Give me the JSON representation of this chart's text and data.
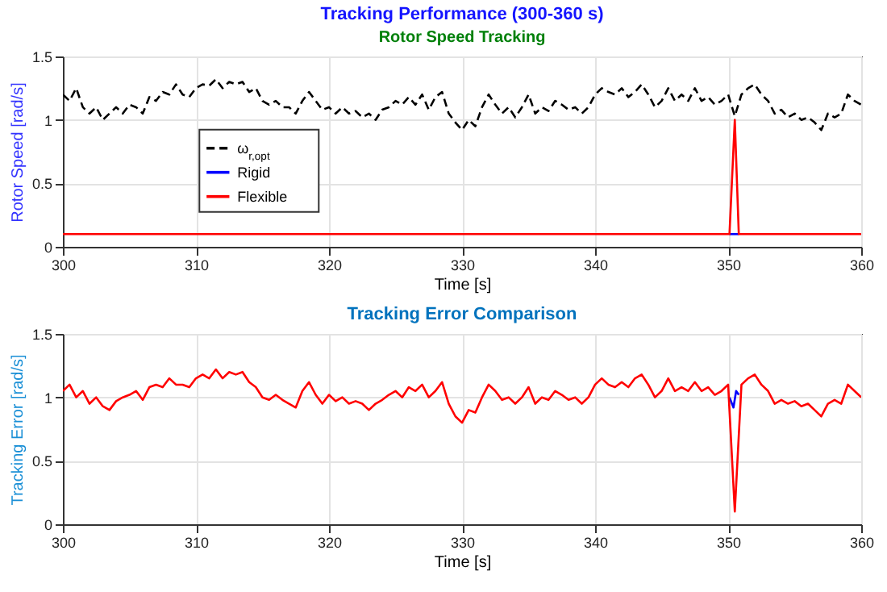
{
  "chart_data": [
    {
      "type": "line",
      "title": "Tracking Performance (300-360 s)",
      "subtitle": "Rotor Speed Tracking",
      "xlabel": "Time [s]",
      "ylabel": "Rotor Speed [rad/s]",
      "x": [
        300,
        300.5,
        301,
        301.5,
        302,
        302.5,
        303,
        303.5,
        304,
        304.5,
        305,
        305.5,
        306,
        306.5,
        307,
        307.5,
        308,
        308.5,
        309,
        309.5,
        310,
        310.5,
        311,
        311.5,
        312,
        312.5,
        313,
        313.5,
        314,
        314.5,
        315,
        315.5,
        316,
        316.5,
        317,
        317.5,
        318,
        318.5,
        319,
        319.5,
        320,
        320.5,
        321,
        321.5,
        322,
        322.5,
        323,
        323.5,
        324,
        324.5,
        325,
        325.5,
        326,
        326.5,
        327,
        327.5,
        328,
        328.5,
        329,
        329.5,
        330,
        330.5,
        331,
        331.5,
        332,
        332.5,
        333,
        333.5,
        334,
        334.5,
        335,
        335.5,
        336,
        336.5,
        337,
        337.5,
        338,
        338.5,
        339,
        339.5,
        340,
        340.5,
        341,
        341.5,
        342,
        342.5,
        343,
        343.5,
        344,
        344.5,
        345,
        345.5,
        346,
        346.5,
        347,
        347.5,
        348,
        348.5,
        349,
        349.5,
        350,
        350.5,
        351,
        351.5,
        352,
        352.5,
        353,
        353.5,
        354,
        354.5,
        355,
        355.5,
        356,
        356.5,
        357,
        357.5,
        358,
        358.5,
        359,
        359.5,
        360
      ],
      "series": [
        {
          "name": "ω$_{r,opt}$",
          "color": "#000000",
          "line_style": "dashed",
          "values": [
            1.2,
            1.15,
            1.25,
            1.1,
            1.05,
            1.1,
            1.0,
            1.05,
            1.1,
            1.05,
            1.12,
            1.1,
            1.05,
            1.18,
            1.15,
            1.22,
            1.2,
            1.28,
            1.2,
            1.18,
            1.25,
            1.28,
            1.27,
            1.32,
            1.25,
            1.3,
            1.28,
            1.3,
            1.22,
            1.25,
            1.15,
            1.12,
            1.15,
            1.1,
            1.1,
            1.05,
            1.15,
            1.22,
            1.15,
            1.08,
            1.1,
            1.05,
            1.1,
            1.05,
            1.07,
            1.02,
            1.05,
            1.0,
            1.08,
            1.1,
            1.15,
            1.12,
            1.18,
            1.12,
            1.2,
            1.08,
            1.18,
            1.22,
            1.05,
            0.98,
            0.92,
            1.0,
            0.95,
            1.1,
            1.2,
            1.12,
            1.05,
            1.1,
            1.02,
            1.1,
            1.2,
            1.05,
            1.1,
            1.07,
            1.15,
            1.12,
            1.08,
            1.1,
            1.05,
            1.1,
            1.2,
            1.25,
            1.22,
            1.2,
            1.25,
            1.18,
            1.22,
            1.28,
            1.2,
            1.1,
            1.15,
            1.25,
            1.15,
            1.2,
            1.15,
            1.25,
            1.15,
            1.18,
            1.12,
            1.15,
            1.2,
            1.03,
            1.2,
            1.25,
            1.28,
            1.2,
            1.15,
            1.05,
            1.08,
            1.02,
            1.05,
            1.0,
            1.02,
            0.98,
            0.92,
            1.05,
            1.02,
            1.05,
            1.2,
            1.15,
            1.12
          ]
        },
        {
          "name": "Rigid",
          "color": "#0000ff",
          "x": [
            350.1,
            350.8
          ],
          "values": [
            0.1,
            0.1
          ]
        },
        {
          "name": "Flexible",
          "color": "#ff0000",
          "x": [
            300,
            350.1,
            350.5,
            350.8,
            360
          ],
          "values": [
            0.1,
            0.1,
            1.0,
            0.1,
            0.1
          ]
        }
      ],
      "xlim": [
        300,
        360
      ],
      "xticks": [
        300,
        310,
        320,
        330,
        340,
        350,
        360
      ],
      "ylim": [
        0,
        1.5
      ],
      "yticks": [
        0,
        0.5,
        1,
        1.5
      ],
      "grid": true,
      "legend": "left"
    },
    {
      "type": "line",
      "title": "Tracking Error Comparison",
      "xlabel": "Time [s]",
      "ylabel": "Tracking Error [rad/s]",
      "x": [
        300,
        300.5,
        301,
        301.5,
        302,
        302.5,
        303,
        303.5,
        304,
        304.5,
        305,
        305.5,
        306,
        306.5,
        307,
        307.5,
        308,
        308.5,
        309,
        309.5,
        310,
        310.5,
        311,
        311.5,
        312,
        312.5,
        313,
        313.5,
        314,
        314.5,
        315,
        315.5,
        316,
        316.5,
        317,
        317.5,
        318,
        318.5,
        319,
        319.5,
        320,
        320.5,
        321,
        321.5,
        322,
        322.5,
        323,
        323.5,
        324,
        324.5,
        325,
        325.5,
        326,
        326.5,
        327,
        327.5,
        328,
        328.5,
        329,
        329.5,
        330,
        330.5,
        331,
        331.5,
        332,
        332.5,
        333,
        333.5,
        334,
        334.5,
        335,
        335.5,
        336,
        336.5,
        337,
        337.5,
        338,
        338.5,
        339,
        339.5,
        340,
        340.5,
        341,
        341.5,
        342,
        342.5,
        343,
        343.5,
        344,
        344.5,
        345,
        345.5,
        346,
        346.5,
        347,
        347.5,
        348,
        348.5,
        349,
        349.5,
        350,
        350.5,
        351,
        351.5,
        352,
        352.5,
        353,
        353.5,
        354,
        354.5,
        355,
        355.5,
        356,
        356.5,
        357,
        357.5,
        358,
        358.5,
        359,
        359.5,
        360
      ],
      "series": [
        {
          "name": "Rigid",
          "color": "#0000ff",
          "x": [
            350.1,
            350.4,
            350.6,
            350.8
          ],
          "values": [
            1.0,
            0.92,
            1.05,
            1.02
          ]
        },
        {
          "name": "Flexible",
          "color": "#ff0000",
          "values": [
            1.05,
            1.1,
            1.0,
            1.05,
            0.95,
            1.0,
            0.93,
            0.9,
            0.97,
            1.0,
            1.02,
            1.05,
            0.98,
            1.08,
            1.1,
            1.08,
            1.15,
            1.1,
            1.1,
            1.08,
            1.15,
            1.18,
            1.15,
            1.22,
            1.15,
            1.2,
            1.18,
            1.2,
            1.12,
            1.08,
            1.0,
            0.98,
            1.02,
            0.98,
            0.95,
            0.92,
            1.05,
            1.12,
            1.02,
            0.95,
            1.02,
            0.97,
            1.0,
            0.95,
            0.97,
            0.95,
            0.9,
            0.95,
            0.98,
            1.02,
            1.05,
            1.0,
            1.08,
            1.05,
            1.1,
            1.0,
            1.05,
            1.12,
            0.95,
            0.85,
            0.8,
            0.9,
            0.88,
            1.0,
            1.1,
            1.05,
            0.98,
            1.0,
            0.95,
            1.0,
            1.08,
            0.95,
            1.0,
            0.98,
            1.05,
            1.02,
            0.98,
            1.0,
            0.95,
            1.0,
            1.1,
            1.15,
            1.1,
            1.08,
            1.12,
            1.08,
            1.15,
            1.18,
            1.1,
            1.0,
            1.05,
            1.15,
            1.05,
            1.08,
            1.05,
            1.12,
            1.05,
            1.08,
            1.02,
            1.05,
            1.1,
            0.1,
            1.1,
            1.15,
            1.18,
            1.1,
            1.05,
            0.95,
            0.98,
            0.95,
            0.97,
            0.93,
            0.95,
            0.9,
            0.85,
            0.95,
            0.98,
            0.95,
            1.1,
            1.05,
            1.0
          ]
        }
      ],
      "xlim": [
        300,
        360
      ],
      "xticks": [
        300,
        310,
        320,
        330,
        340,
        350,
        360
      ],
      "ylim": [
        0,
        1.5
      ],
      "yticks": [
        0,
        0.5,
        1,
        1.5
      ],
      "grid": true,
      "legend": "bottom"
    }
  ]
}
